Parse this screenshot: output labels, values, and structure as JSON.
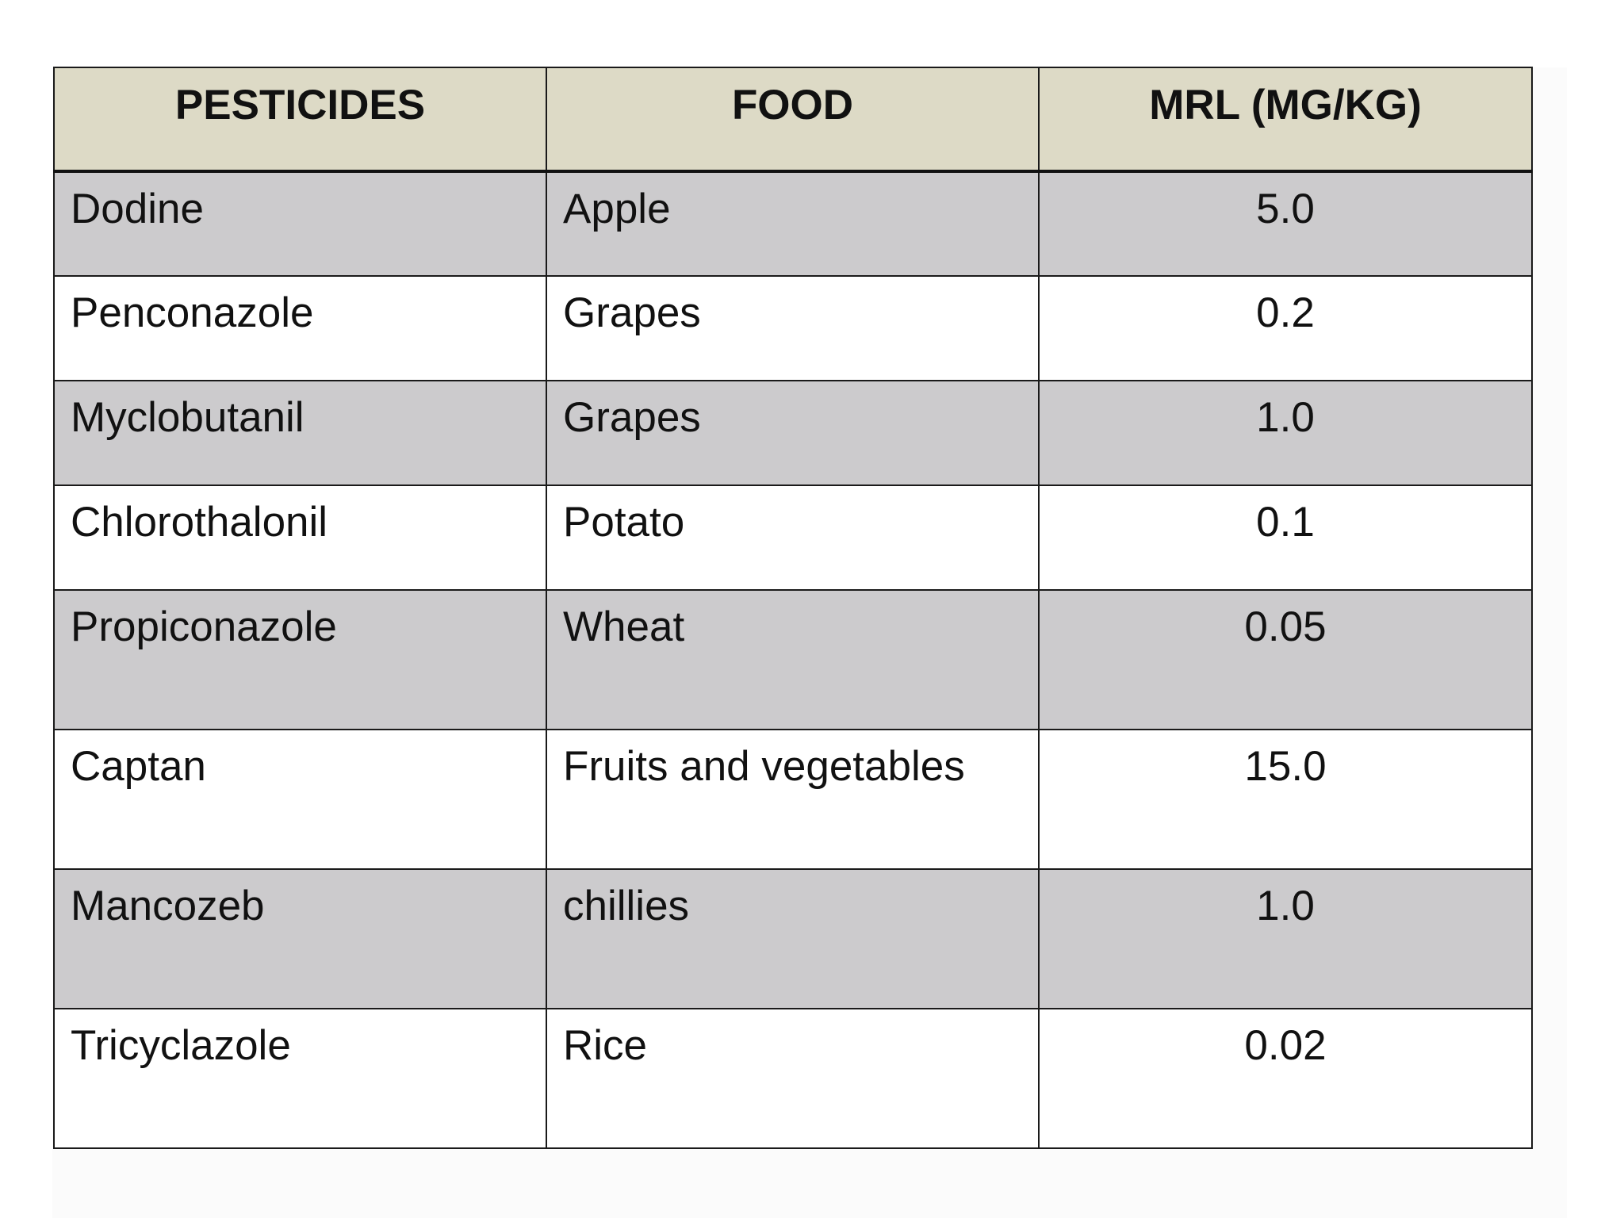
{
  "table": {
    "headers": {
      "pesticides": "PESTICIDES",
      "food": "FOOD",
      "mrl": "MRL (MG/KG)"
    },
    "rows": [
      {
        "pesticide": "Dodine",
        "food": "Apple",
        "mrl": "5.0"
      },
      {
        "pesticide": "Penconazole",
        "food": "Grapes",
        "mrl": "0.2"
      },
      {
        "pesticide": "Myclobutanil",
        "food": "Grapes",
        "mrl": "1.0"
      },
      {
        "pesticide": "Chlorothalonil",
        "food": "Potato",
        "mrl": "0.1"
      },
      {
        "pesticide": "Propiconazole",
        "food": "Wheat",
        "mrl": "0.05"
      },
      {
        "pesticide": "Captan",
        "food": "Fruits and vegetables",
        "mrl": "15.0"
      },
      {
        "pesticide": "Mancozeb",
        "food": "chillies",
        "mrl": "1.0"
      },
      {
        "pesticide": "Tricyclazole",
        "food": "Rice",
        "mrl": "0.02"
      }
    ]
  },
  "colors": {
    "header_bg": "#dddac6",
    "shaded_row_bg": "#cccbcd",
    "plain_row_bg": "#ffffff",
    "border": "#1a1a1a"
  }
}
